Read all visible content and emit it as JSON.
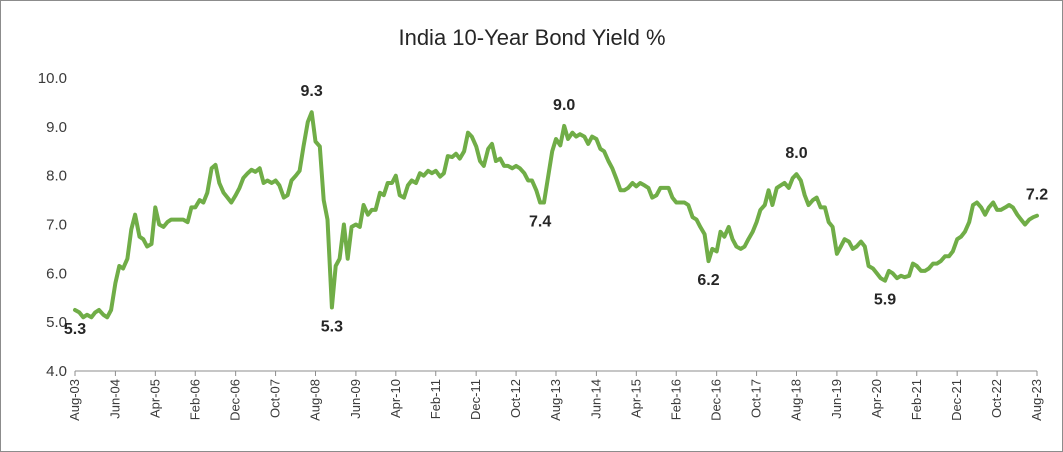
{
  "chart_data": {
    "type": "line",
    "title": "India 10-Year Bond Yield %",
    "xlabel": "",
    "ylabel": "",
    "ylim": [
      4.0,
      10.0
    ],
    "yticks": [
      "4.0",
      "5.0",
      "6.0",
      "7.0",
      "8.0",
      "9.0",
      "10.0"
    ],
    "xlim": [
      2003.58,
      2023.58
    ],
    "xtick_labels": [
      {
        "label": "Aug-03",
        "x": 2003.58
      },
      {
        "label": "Jun-04",
        "x": 2004.42
      },
      {
        "label": "Apr-05",
        "x": 2005.25
      },
      {
        "label": "Feb-06",
        "x": 2006.08
      },
      {
        "label": "Dec-06",
        "x": 2006.92
      },
      {
        "label": "Oct-07",
        "x": 2007.75
      },
      {
        "label": "Aug-08",
        "x": 2008.58
      },
      {
        "label": "Jun-09",
        "x": 2009.42
      },
      {
        "label": "Apr-10",
        "x": 2010.25
      },
      {
        "label": "Feb-11",
        "x": 2011.08
      },
      {
        "label": "Dec-11",
        "x": 2011.92
      },
      {
        "label": "Oct-12",
        "x": 2012.75
      },
      {
        "label": "Aug-13",
        "x": 2013.58
      },
      {
        "label": "Jun-14",
        "x": 2014.42
      },
      {
        "label": "Apr-15",
        "x": 2015.25
      },
      {
        "label": "Feb-16",
        "x": 2016.08
      },
      {
        "label": "Dec-16",
        "x": 2016.92
      },
      {
        "label": "Oct-17",
        "x": 2017.75
      },
      {
        "label": "Aug-18",
        "x": 2018.58
      },
      {
        "label": "Jun-19",
        "x": 2019.42
      },
      {
        "label": "Apr-20",
        "x": 2020.25
      },
      {
        "label": "Feb-21",
        "x": 2021.08
      },
      {
        "label": "Dec-21",
        "x": 2021.92
      },
      {
        "label": "Oct-22",
        "x": 2022.75
      },
      {
        "label": "Aug-23",
        "x": 2023.58
      }
    ],
    "series": [
      {
        "name": "India 10-Year Bond Yield %",
        "color": "#70ad47",
        "points": [
          [
            2003.58,
            5.25
          ],
          [
            2003.67,
            5.2
          ],
          [
            2003.75,
            5.1
          ],
          [
            2003.83,
            5.15
          ],
          [
            2003.92,
            5.1
          ],
          [
            2004.0,
            5.2
          ],
          [
            2004.08,
            5.25
          ],
          [
            2004.17,
            5.15
          ],
          [
            2004.25,
            5.1
          ],
          [
            2004.33,
            5.25
          ],
          [
            2004.42,
            5.8
          ],
          [
            2004.5,
            6.15
          ],
          [
            2004.58,
            6.1
          ],
          [
            2004.67,
            6.3
          ],
          [
            2004.75,
            6.9
          ],
          [
            2004.83,
            7.2
          ],
          [
            2004.92,
            6.75
          ],
          [
            2005.0,
            6.7
          ],
          [
            2005.08,
            6.55
          ],
          [
            2005.17,
            6.6
          ],
          [
            2005.25,
            7.35
          ],
          [
            2005.33,
            7.0
          ],
          [
            2005.42,
            6.95
          ],
          [
            2005.5,
            7.05
          ],
          [
            2005.58,
            7.1
          ],
          [
            2005.67,
            7.1
          ],
          [
            2005.75,
            7.1
          ],
          [
            2005.83,
            7.1
          ],
          [
            2005.92,
            7.05
          ],
          [
            2006.0,
            7.35
          ],
          [
            2006.08,
            7.35
          ],
          [
            2006.17,
            7.5
          ],
          [
            2006.25,
            7.45
          ],
          [
            2006.33,
            7.65
          ],
          [
            2006.42,
            8.15
          ],
          [
            2006.5,
            8.22
          ],
          [
            2006.58,
            7.85
          ],
          [
            2006.67,
            7.65
          ],
          [
            2006.75,
            7.55
          ],
          [
            2006.83,
            7.45
          ],
          [
            2006.92,
            7.6
          ],
          [
            2007.0,
            7.75
          ],
          [
            2007.08,
            7.95
          ],
          [
            2007.17,
            8.05
          ],
          [
            2007.25,
            8.12
          ],
          [
            2007.33,
            8.08
          ],
          [
            2007.42,
            8.15
          ],
          [
            2007.5,
            7.85
          ],
          [
            2007.58,
            7.9
          ],
          [
            2007.67,
            7.85
          ],
          [
            2007.75,
            7.9
          ],
          [
            2007.83,
            7.8
          ],
          [
            2007.92,
            7.55
          ],
          [
            2008.0,
            7.6
          ],
          [
            2008.08,
            7.9
          ],
          [
            2008.17,
            8.0
          ],
          [
            2008.25,
            8.1
          ],
          [
            2008.33,
            8.6
          ],
          [
            2008.42,
            9.1
          ],
          [
            2008.5,
            9.3
          ],
          [
            2008.58,
            8.7
          ],
          [
            2008.67,
            8.6
          ],
          [
            2008.75,
            7.5
          ],
          [
            2008.83,
            7.1
          ],
          [
            2008.92,
            5.3
          ],
          [
            2009.0,
            6.15
          ],
          [
            2009.08,
            6.3
          ],
          [
            2009.17,
            7.0
          ],
          [
            2009.25,
            6.3
          ],
          [
            2009.33,
            6.95
          ],
          [
            2009.42,
            7.0
          ],
          [
            2009.5,
            6.95
          ],
          [
            2009.58,
            7.4
          ],
          [
            2009.67,
            7.2
          ],
          [
            2009.75,
            7.3
          ],
          [
            2009.83,
            7.3
          ],
          [
            2009.92,
            7.65
          ],
          [
            2010.0,
            7.6
          ],
          [
            2010.08,
            7.85
          ],
          [
            2010.17,
            7.85
          ],
          [
            2010.25,
            8.0
          ],
          [
            2010.33,
            7.6
          ],
          [
            2010.42,
            7.55
          ],
          [
            2010.5,
            7.8
          ],
          [
            2010.58,
            7.9
          ],
          [
            2010.67,
            7.85
          ],
          [
            2010.75,
            8.05
          ],
          [
            2010.83,
            8.0
          ],
          [
            2010.92,
            8.1
          ],
          [
            2011.0,
            8.05
          ],
          [
            2011.08,
            8.1
          ],
          [
            2011.17,
            7.98
          ],
          [
            2011.25,
            8.05
          ],
          [
            2011.33,
            8.4
          ],
          [
            2011.42,
            8.38
          ],
          [
            2011.5,
            8.45
          ],
          [
            2011.58,
            8.35
          ],
          [
            2011.67,
            8.5
          ],
          [
            2011.75,
            8.88
          ],
          [
            2011.83,
            8.8
          ],
          [
            2011.92,
            8.6
          ],
          [
            2012.0,
            8.3
          ],
          [
            2012.08,
            8.2
          ],
          [
            2012.17,
            8.55
          ],
          [
            2012.25,
            8.65
          ],
          [
            2012.33,
            8.3
          ],
          [
            2012.42,
            8.35
          ],
          [
            2012.5,
            8.2
          ],
          [
            2012.58,
            8.2
          ],
          [
            2012.67,
            8.15
          ],
          [
            2012.75,
            8.2
          ],
          [
            2012.83,
            8.15
          ],
          [
            2012.92,
            8.05
          ],
          [
            2013.0,
            7.9
          ],
          [
            2013.08,
            7.9
          ],
          [
            2013.17,
            7.7
          ],
          [
            2013.25,
            7.45
          ],
          [
            2013.33,
            7.45
          ],
          [
            2013.42,
            8.0
          ],
          [
            2013.5,
            8.5
          ],
          [
            2013.58,
            8.75
          ],
          [
            2013.67,
            8.62
          ],
          [
            2013.75,
            9.02
          ],
          [
            2013.83,
            8.75
          ],
          [
            2013.92,
            8.88
          ],
          [
            2014.0,
            8.8
          ],
          [
            2014.08,
            8.85
          ],
          [
            2014.17,
            8.8
          ],
          [
            2014.25,
            8.65
          ],
          [
            2014.33,
            8.8
          ],
          [
            2014.42,
            8.75
          ],
          [
            2014.5,
            8.55
          ],
          [
            2014.58,
            8.5
          ],
          [
            2014.67,
            8.3
          ],
          [
            2014.75,
            8.15
          ],
          [
            2014.83,
            7.95
          ],
          [
            2014.92,
            7.7
          ],
          [
            2015.0,
            7.7
          ],
          [
            2015.08,
            7.75
          ],
          [
            2015.17,
            7.85
          ],
          [
            2015.25,
            7.78
          ],
          [
            2015.33,
            7.85
          ],
          [
            2015.42,
            7.8
          ],
          [
            2015.5,
            7.75
          ],
          [
            2015.58,
            7.55
          ],
          [
            2015.67,
            7.6
          ],
          [
            2015.75,
            7.75
          ],
          [
            2015.83,
            7.75
          ],
          [
            2015.92,
            7.75
          ],
          [
            2016.0,
            7.55
          ],
          [
            2016.08,
            7.45
          ],
          [
            2016.17,
            7.45
          ],
          [
            2016.25,
            7.45
          ],
          [
            2016.33,
            7.4
          ],
          [
            2016.42,
            7.15
          ],
          [
            2016.5,
            7.1
          ],
          [
            2016.58,
            6.95
          ],
          [
            2016.67,
            6.8
          ],
          [
            2016.75,
            6.25
          ],
          [
            2016.83,
            6.5
          ],
          [
            2016.92,
            6.45
          ],
          [
            2017.0,
            6.85
          ],
          [
            2017.08,
            6.75
          ],
          [
            2017.17,
            6.95
          ],
          [
            2017.25,
            6.7
          ],
          [
            2017.33,
            6.55
          ],
          [
            2017.42,
            6.5
          ],
          [
            2017.5,
            6.55
          ],
          [
            2017.58,
            6.7
          ],
          [
            2017.67,
            6.85
          ],
          [
            2017.75,
            7.05
          ],
          [
            2017.83,
            7.3
          ],
          [
            2017.92,
            7.4
          ],
          [
            2018.0,
            7.7
          ],
          [
            2018.08,
            7.4
          ],
          [
            2018.17,
            7.75
          ],
          [
            2018.25,
            7.8
          ],
          [
            2018.33,
            7.85
          ],
          [
            2018.42,
            7.75
          ],
          [
            2018.5,
            7.95
          ],
          [
            2018.58,
            8.03
          ],
          [
            2018.67,
            7.9
          ],
          [
            2018.75,
            7.6
          ],
          [
            2018.83,
            7.4
          ],
          [
            2018.92,
            7.5
          ],
          [
            2019.0,
            7.55
          ],
          [
            2019.08,
            7.35
          ],
          [
            2019.17,
            7.35
          ],
          [
            2019.25,
            7.05
          ],
          [
            2019.33,
            6.95
          ],
          [
            2019.42,
            6.4
          ],
          [
            2019.5,
            6.55
          ],
          [
            2019.58,
            6.7
          ],
          [
            2019.67,
            6.65
          ],
          [
            2019.75,
            6.5
          ],
          [
            2019.83,
            6.55
          ],
          [
            2019.92,
            6.65
          ],
          [
            2020.0,
            6.55
          ],
          [
            2020.08,
            6.15
          ],
          [
            2020.17,
            6.1
          ],
          [
            2020.25,
            6.0
          ],
          [
            2020.33,
            5.9
          ],
          [
            2020.42,
            5.85
          ],
          [
            2020.5,
            6.05
          ],
          [
            2020.58,
            6.0
          ],
          [
            2020.67,
            5.9
          ],
          [
            2020.75,
            5.95
          ],
          [
            2020.83,
            5.92
          ],
          [
            2020.92,
            5.95
          ],
          [
            2021.0,
            6.2
          ],
          [
            2021.08,
            6.15
          ],
          [
            2021.17,
            6.05
          ],
          [
            2021.25,
            6.05
          ],
          [
            2021.33,
            6.1
          ],
          [
            2021.42,
            6.2
          ],
          [
            2021.5,
            6.2
          ],
          [
            2021.58,
            6.25
          ],
          [
            2021.67,
            6.35
          ],
          [
            2021.75,
            6.35
          ],
          [
            2021.83,
            6.45
          ],
          [
            2021.92,
            6.7
          ],
          [
            2022.0,
            6.75
          ],
          [
            2022.08,
            6.85
          ],
          [
            2022.17,
            7.05
          ],
          [
            2022.25,
            7.4
          ],
          [
            2022.33,
            7.45
          ],
          [
            2022.42,
            7.35
          ],
          [
            2022.5,
            7.2
          ],
          [
            2022.58,
            7.35
          ],
          [
            2022.67,
            7.45
          ],
          [
            2022.75,
            7.3
          ],
          [
            2022.83,
            7.3
          ],
          [
            2022.92,
            7.35
          ],
          [
            2023.0,
            7.4
          ],
          [
            2023.08,
            7.35
          ],
          [
            2023.17,
            7.2
          ],
          [
            2023.25,
            7.1
          ],
          [
            2023.33,
            7.0
          ],
          [
            2023.42,
            7.1
          ],
          [
            2023.5,
            7.15
          ],
          [
            2023.58,
            7.18
          ]
        ]
      }
    ],
    "annotations": [
      {
        "text": "5.3",
        "x": 2003.58,
        "y": 5.25,
        "pos": "below"
      },
      {
        "text": "9.3",
        "x": 2008.5,
        "y": 9.3,
        "pos": "above"
      },
      {
        "text": "5.3",
        "x": 2008.92,
        "y": 5.3,
        "pos": "below"
      },
      {
        "text": "7.4",
        "x": 2013.25,
        "y": 7.45,
        "pos": "below"
      },
      {
        "text": "9.0",
        "x": 2013.75,
        "y": 9.02,
        "pos": "above"
      },
      {
        "text": "6.2",
        "x": 2016.75,
        "y": 6.25,
        "pos": "below"
      },
      {
        "text": "8.0",
        "x": 2018.58,
        "y": 8.03,
        "pos": "above"
      },
      {
        "text": "5.9",
        "x": 2020.42,
        "y": 5.85,
        "pos": "below"
      },
      {
        "text": "7.2",
        "x": 2023.58,
        "y": 7.18,
        "pos": "above"
      }
    ],
    "grid": false,
    "legend": "none"
  }
}
